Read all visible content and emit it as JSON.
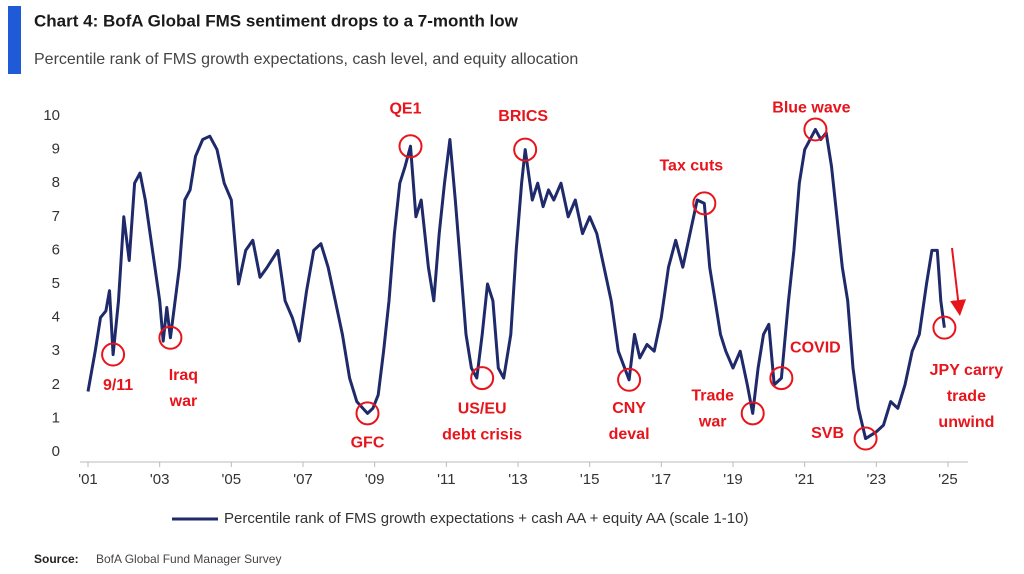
{
  "chart_data": {
    "type": "line",
    "title": "Chart 4: BofA Global FMS sentiment drops to a 7-month low",
    "subtitle": "Percentile rank of FMS growth expectations, cash level, and equity allocation",
    "source_label": "Source:",
    "source": "BofA Global Fund Manager Survey",
    "x": [
      2001.0,
      2001.2,
      2001.35,
      2001.5,
      2001.6,
      2001.7,
      2001.85,
      2002.0,
      2002.15,
      2002.3,
      2002.45,
      2002.6,
      2002.8,
      2003.0,
      2003.1,
      2003.2,
      2003.3,
      2003.55,
      2003.7,
      2003.85,
      2004.0,
      2004.2,
      2004.4,
      2004.6,
      2004.8,
      2005.0,
      2005.2,
      2005.4,
      2005.6,
      2005.8,
      2006.0,
      2006.3,
      2006.5,
      2006.7,
      2006.9,
      2007.1,
      2007.3,
      2007.5,
      2007.7,
      2007.9,
      2008.1,
      2008.3,
      2008.5,
      2008.8,
      2008.95,
      2009.1,
      2009.25,
      2009.4,
      2009.55,
      2009.7,
      2009.85,
      2010.0,
      2010.15,
      2010.3,
      2010.5,
      2010.65,
      2010.8,
      2010.95,
      2011.1,
      2011.25,
      2011.4,
      2011.55,
      2011.7,
      2011.85,
      2012.0,
      2012.15,
      2012.3,
      2012.45,
      2012.6,
      2012.8,
      2012.95,
      2013.1,
      2013.2,
      2013.4,
      2013.55,
      2013.7,
      2013.85,
      2014.0,
      2014.2,
      2014.4,
      2014.6,
      2014.8,
      2015.0,
      2015.2,
      2015.4,
      2015.6,
      2015.8,
      2016.1,
      2016.25,
      2016.4,
      2016.6,
      2016.8,
      2017.0,
      2017.2,
      2017.4,
      2017.6,
      2017.8,
      2018.0,
      2018.2,
      2018.35,
      2018.5,
      2018.65,
      2018.8,
      2019.0,
      2019.2,
      2019.4,
      2019.55,
      2019.7,
      2019.85,
      2020.0,
      2020.15,
      2020.35,
      2020.55,
      2020.7,
      2020.85,
      2021.0,
      2021.3,
      2021.45,
      2021.6,
      2021.75,
      2021.9,
      2022.05,
      2022.2,
      2022.35,
      2022.5,
      2022.7,
      2022.85,
      2023.0,
      2023.2,
      2023.4,
      2023.6,
      2023.8,
      2024.0,
      2024.2,
      2024.4,
      2024.55,
      2024.7,
      2024.8,
      2024.9
    ],
    "series": [
      {
        "name": "Percentile rank of FMS growth expectations + cash AA + equity AA (scale 1-10)",
        "color": "#1f2a6b",
        "values": [
          1.8,
          3.0,
          4.0,
          4.2,
          4.8,
          2.9,
          4.5,
          7.0,
          5.7,
          8.0,
          8.3,
          7.5,
          6.0,
          4.5,
          3.3,
          4.3,
          3.4,
          5.5,
          7.5,
          7.8,
          8.8,
          9.3,
          9.4,
          9.0,
          8.0,
          7.5,
          5.0,
          6.0,
          6.3,
          5.2,
          5.5,
          6.0,
          4.5,
          4.0,
          3.3,
          4.8,
          6.0,
          6.2,
          5.5,
          4.5,
          3.5,
          2.2,
          1.5,
          1.15,
          1.3,
          1.7,
          3.0,
          4.5,
          6.5,
          8.0,
          8.5,
          9.1,
          7.0,
          7.5,
          5.5,
          4.5,
          6.5,
          8.0,
          9.3,
          7.5,
          5.5,
          3.5,
          2.5,
          2.2,
          3.5,
          5.0,
          4.5,
          2.5,
          2.2,
          3.5,
          6.0,
          8.0,
          9.0,
          7.5,
          8.0,
          7.3,
          7.8,
          7.5,
          8.0,
          7.0,
          7.5,
          6.5,
          7.0,
          6.5,
          5.5,
          4.5,
          3.0,
          2.15,
          3.5,
          2.8,
          3.2,
          3.0,
          4.0,
          5.5,
          6.3,
          5.5,
          6.5,
          7.5,
          7.4,
          5.5,
          4.5,
          3.5,
          3.0,
          2.5,
          3.0,
          2.0,
          1.15,
          2.5,
          3.5,
          3.8,
          2.0,
          2.2,
          4.5,
          6.0,
          8.0,
          9.0,
          9.6,
          9.3,
          9.5,
          8.5,
          7.0,
          5.5,
          4.5,
          2.5,
          1.3,
          0.4,
          0.5,
          0.6,
          0.8,
          1.5,
          1.3,
          2.0,
          3.0,
          3.5,
          5.0,
          6.0,
          6.0,
          4.5,
          3.7
        ]
      }
    ],
    "xlim": [
      2001,
      2025
    ],
    "xticks": [
      {
        "value": 2001,
        "label": "'01"
      },
      {
        "value": 2003,
        "label": "'03"
      },
      {
        "value": 2005,
        "label": "'05"
      },
      {
        "value": 2007,
        "label": "'07"
      },
      {
        "value": 2009,
        "label": "'09"
      },
      {
        "value": 2011,
        "label": "'11"
      },
      {
        "value": 2013,
        "label": "'13"
      },
      {
        "value": 2015,
        "label": "'15"
      },
      {
        "value": 2017,
        "label": "'17"
      },
      {
        "value": 2019,
        "label": "'19"
      },
      {
        "value": 2021,
        "label": "'21"
      },
      {
        "value": 2023,
        "label": "'23"
      },
      {
        "value": 2025,
        "label": "'25"
      }
    ],
    "ylim": [
      0,
      10
    ],
    "yticks": [
      0,
      1,
      2,
      3,
      4,
      5,
      6,
      7,
      8,
      9,
      10
    ],
    "annotations": [
      {
        "lines": [
          "9/11"
        ],
        "x": 2001.7,
        "y": 2.9
      },
      {
        "lines": [
          "Iraq",
          "war"
        ],
        "x": 2003.3,
        "y": 3.4
      },
      {
        "lines": [
          "GFC"
        ],
        "x": 2008.8,
        "y": 1.15
      },
      {
        "lines": [
          "QE1"
        ],
        "x": 2010.0,
        "y": 9.1
      },
      {
        "lines": [
          "US/EU",
          "debt crisis"
        ],
        "x": 2012.0,
        "y": 2.2
      },
      {
        "lines": [
          "BRICS"
        ],
        "x": 2013.2,
        "y": 9.0
      },
      {
        "lines": [
          "CNY",
          "deval"
        ],
        "x": 2016.1,
        "y": 2.15
      },
      {
        "lines": [
          "Tax cuts"
        ],
        "x": 2018.2,
        "y": 7.4
      },
      {
        "lines": [
          "Trade",
          "war"
        ],
        "x": 2019.55,
        "y": 1.15
      },
      {
        "lines": [
          "COVID"
        ],
        "x": 2020.35,
        "y": 2.2
      },
      {
        "lines": [
          "Blue wave"
        ],
        "x": 2021.3,
        "y": 9.6
      },
      {
        "lines": [
          "SVB"
        ],
        "x": 2022.7,
        "y": 0.4
      },
      {
        "lines": [
          "JPY carry",
          "trade",
          "unwind"
        ],
        "x": 2024.9,
        "y": 3.7
      }
    ]
  }
}
